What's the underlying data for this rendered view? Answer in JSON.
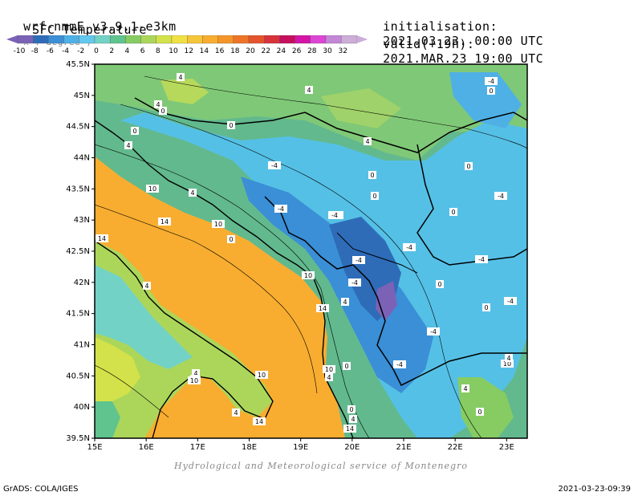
{
  "header": {
    "model": "wrf-nmmE_v3.9.1-e3km",
    "model_note": "x . degree )",
    "field": "SFC Temperature",
    "init_label": "initialisation:",
    "init_value": "2021.03.23. 00:00 UTC",
    "valid_label": "valid(+19h):",
    "valid_value": "2021.MAR.23 19:00 UTC"
  },
  "legend": {
    "labels": [
      "-10",
      "-8",
      "-6",
      "-4",
      "-2",
      "0",
      "2",
      "4",
      "6",
      "8",
      "10",
      "12",
      "14",
      "16",
      "18",
      "20",
      "22",
      "24",
      "26",
      "28",
      "30",
      "32"
    ],
    "colors": [
      "#7b62b6",
      "#2e6cb8",
      "#3b8fd6",
      "#4fb0e6",
      "#62c8ee",
      "#72d2c6",
      "#5fc48e",
      "#86cc63",
      "#acd65a",
      "#d3e24a",
      "#f1e043",
      "#f5c53a",
      "#f8ad30",
      "#f59528",
      "#ee7428",
      "#e4542b",
      "#d8323a",
      "#c5105e",
      "#d415a8",
      "#dc46d4",
      "#c486d6",
      "#ccaed8"
    ]
  },
  "map": {
    "lat_labels": [
      "45.5N",
      "45N",
      "44.5N",
      "44N",
      "43.5N",
      "43N",
      "42.5N",
      "42N",
      "41.5N",
      "41N",
      "40.5N",
      "40N",
      "39.5N"
    ],
    "lon_labels": [
      "15E",
      "16E",
      "17E",
      "18E",
      "19E",
      "20E",
      "21E",
      "22E",
      "23E"
    ],
    "contour_labels": [
      {
        "text": "4"
      },
      {
        "text": "4"
      },
      {
        "text": "0"
      },
      {
        "text": "4"
      },
      {
        "text": "0"
      },
      {
        "text": "4"
      },
      {
        "text": "-4"
      },
      {
        "text": "0"
      },
      {
        "text": "4"
      },
      {
        "text": "10"
      },
      {
        "text": "4"
      },
      {
        "text": "0"
      },
      {
        "text": "14"
      },
      {
        "text": "10"
      },
      {
        "text": "-4"
      },
      {
        "text": "-4"
      },
      {
        "text": "0"
      },
      {
        "text": "4"
      },
      {
        "text": "14"
      },
      {
        "text": "-4"
      },
      {
        "text": "10"
      },
      {
        "text": "-4"
      },
      {
        "text": "-4"
      },
      {
        "text": "0"
      },
      {
        "text": "4"
      },
      {
        "text": "-4"
      },
      {
        "text": "0"
      },
      {
        "text": "-4"
      },
      {
        "text": "14"
      },
      {
        "text": "0"
      },
      {
        "text": "4"
      },
      {
        "text": "-4"
      },
      {
        "text": "-4"
      },
      {
        "text": "0"
      },
      {
        "text": "0"
      },
      {
        "text": "-4"
      },
      {
        "text": "4"
      },
      {
        "text": "4"
      },
      {
        "text": "10"
      },
      {
        "text": "-4"
      },
      {
        "text": "0"
      },
      {
        "text": "4"
      },
      {
        "text": "10"
      },
      {
        "text": "4"
      },
      {
        "text": "0"
      },
      {
        "text": "14"
      },
      {
        "text": "0"
      },
      {
        "text": "4"
      },
      {
        "text": "10"
      },
      {
        "text": "14"
      },
      {
        "text": "4"
      },
      {
        "text": "10"
      },
      {
        "text": "0"
      },
      {
        "text": "-4"
      },
      {
        "text": "-4"
      }
    ]
  },
  "footer": {
    "credit": "Hydrological and Meteorological service of Montenegro",
    "left": "GrADS: COLA/IGES",
    "right": "2021-03-23-09:39"
  }
}
